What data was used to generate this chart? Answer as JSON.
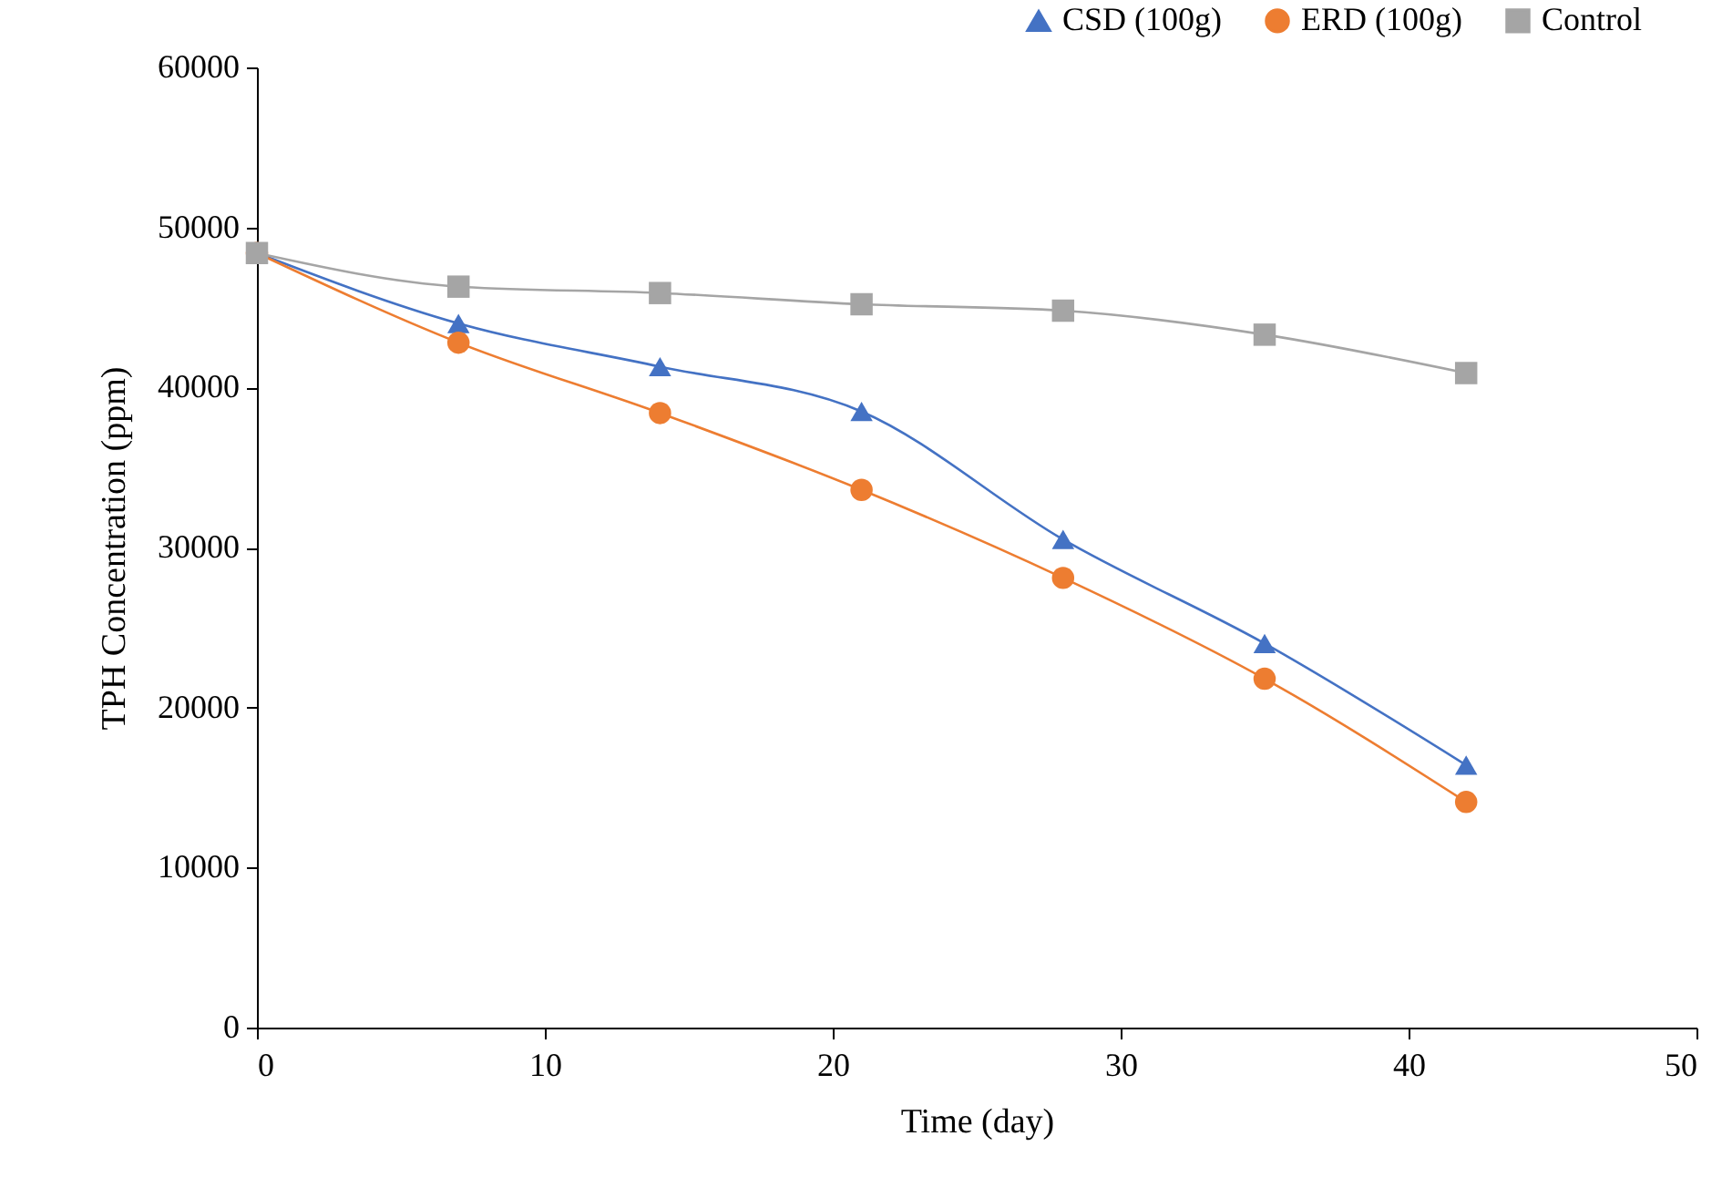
{
  "chart_data": {
    "type": "line",
    "xlabel": "Time (day)",
    "ylabel": "TPH Concentration (ppm)",
    "x": [
      0,
      7,
      14,
      21,
      28,
      35,
      42
    ],
    "series": [
      {
        "name": "CSD (100g)",
        "color": "#4472c4",
        "marker": "triangle",
        "values": [
          48400,
          44000,
          41300,
          38500,
          30500,
          24000,
          16400
        ]
      },
      {
        "name": "ERD (100g)",
        "color": "#ed7d31",
        "marker": "circle",
        "values": [
          48400,
          42800,
          38400,
          33600,
          28100,
          21800,
          14100
        ]
      },
      {
        "name": "Control",
        "color": "#a5a5a5",
        "marker": "square",
        "values": [
          48400,
          46300,
          45900,
          45200,
          44800,
          43300,
          40900
        ]
      }
    ],
    "xlim": [
      0,
      50
    ],
    "xticks": [
      0,
      10,
      20,
      30,
      40,
      50
    ],
    "ylim": [
      0,
      60000
    ],
    "yticks": [
      0,
      10000,
      20000,
      30000,
      40000,
      50000,
      60000
    ],
    "grid": false,
    "legend": "top right",
    "line_style": "solid"
  }
}
